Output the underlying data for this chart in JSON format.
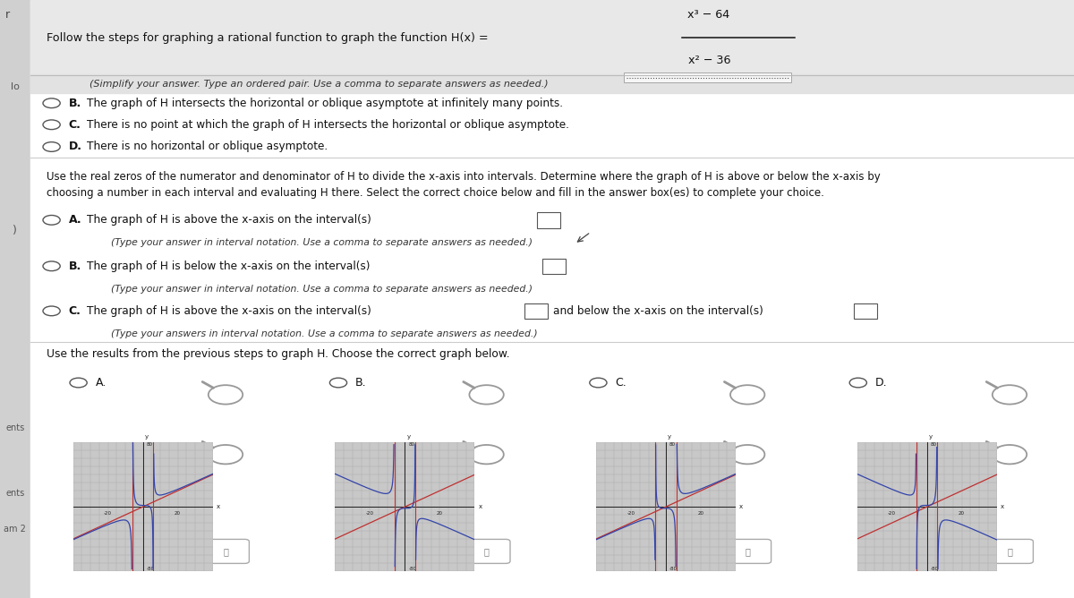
{
  "bg_color": "#f0f0f0",
  "white_bg": "#ffffff",
  "gray_strip": "#d0d0d0",
  "gray_header_bg": "#e8e8e8",
  "gray_row_bg": "#e2e2e2",
  "title": "Follow the steps for graphing a rational function to graph the function H(x) =",
  "formula_num": "x³ − 64",
  "formula_den": "x² − 36",
  "first_row_text": "(Simplify your answer. Type an ordered pair. Use a comma to separate answers as needed.)",
  "row_B": "The graph of H intersects the horizontal or oblique asymptote at infinitely many points.",
  "row_C": "There is no point at which the graph of H intersects the horizontal or oblique asymptote.",
  "row_D": "There is no horizontal or oblique asymptote.",
  "para1_line1": "Use the real zeros of the numerator and denominator of H to divide the x-axis into intervals. Determine where the graph of H is above or below the x-axis by",
  "para1_line2": "choosing a number in each interval and evaluating H there. Select the correct choice below and fill in the answer box(es) to complete your choice.",
  "choiceA_main": "The graph of H is above the x-axis on the interval(s)",
  "choiceA_sub": "(Type your answer in interval notation. Use a comma to separate answers as needed.)",
  "choiceB_main": "The graph of H is below the x-axis on the interval(s)",
  "choiceB_sub": "(Type your answer in interval notation. Use a comma to separate answers as needed.)",
  "choiceC_main": "The graph of H is above the x-axis on the interval(s)",
  "choiceC_mid": "and below the x-axis on the interval(s)",
  "choiceC_sub": "(Type your answers in interval notation. Use a comma to separate answers as needed.)",
  "last_line": "Use the results from the previous steps to graph H. Choose the correct graph below.",
  "red_color": "#c03030",
  "blue_color": "#3344aa",
  "grid_bg": "#c8c8c8",
  "grid_line": "#aaaaaa"
}
